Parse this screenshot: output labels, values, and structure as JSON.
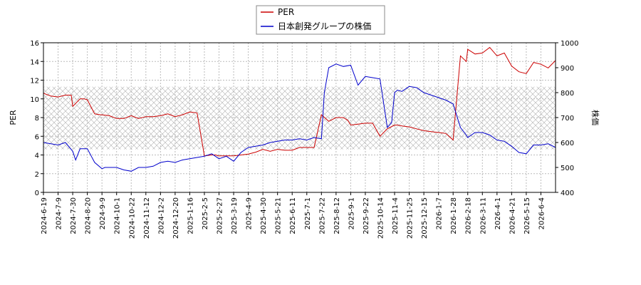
{
  "chart_data": {
    "type": "line",
    "legend_position": "top-center",
    "grid": true,
    "hatched_band": true,
    "xlabel": "",
    "ylabel_left": "PER",
    "ylabel_right": "株価",
    "ylim_left": [
      0,
      16
    ],
    "ylim_right": [
      400,
      1000
    ],
    "yticks_left": [
      0,
      2,
      4,
      6,
      8,
      10,
      12,
      14,
      16
    ],
    "yticks_right": [
      400,
      500,
      600,
      700,
      800,
      900,
      1000
    ],
    "x_tick_labels": [
      "2024-6-19",
      "2024-7-9",
      "2024-7-30",
      "2024-8-20",
      "2024-9-9",
      "2024-10-1",
      "2024-10-22",
      "2024-11-12",
      "2024-12-2",
      "2024-12-20",
      "2025-1-16",
      "2025-2-5",
      "2025-2-27",
      "2025-3-19",
      "2025-4-9",
      "2025-4-30",
      "2025-5-21",
      "2025-6-11",
      "2025-7-1",
      "2025-7-22",
      "2025-8-12",
      "2025-9-1",
      "2025-9-22",
      "2025-10-14",
      "2025-11-4",
      "2025-11-25",
      "2025-12-15",
      "2026-1-7",
      "2026-1-28",
      "2026-2-18",
      "2026-3-11",
      "2026-4-1",
      "2026-4-21",
      "2026-5-15",
      "2026-6-4"
    ],
    "x_range": [
      0,
      35
    ],
    "series": [
      {
        "name": "PER",
        "axis": "left",
        "color": "#cc0000",
        "x": [
          0,
          0.5,
          1,
          1.5,
          1.9,
          2,
          2.5,
          2.8,
          3,
          3.5,
          3.9,
          4,
          4.5,
          5,
          5.5,
          6,
          6.5,
          7,
          7.5,
          8,
          8.5,
          9,
          9.5,
          10,
          10.5,
          11,
          11.5,
          11.8,
          11.9,
          12,
          12.5,
          13,
          13.5,
          14,
          14.5,
          15,
          15.5,
          16,
          16.5,
          17,
          17.5,
          18,
          18.5,
          19,
          19.5,
          20,
          20.5,
          20.8,
          21,
          21.5,
          22,
          22.5,
          23,
          23.5,
          24,
          24.2,
          24.5,
          25,
          25.5,
          26,
          26.5,
          27,
          27.5,
          28,
          28.5,
          28.9,
          29,
          29.5,
          30,
          30.5,
          31,
          31.5,
          32,
          32.5,
          33,
          33.5,
          34,
          34.5,
          35
        ],
        "values": [
          10.6,
          10.3,
          10.2,
          10.4,
          10.4,
          9.2,
          10.0,
          10.0,
          9.9,
          8.4,
          8.3,
          8.3,
          8.2,
          7.9,
          7.9,
          8.2,
          7.9,
          8.1,
          8.1,
          8.2,
          8.4,
          8.1,
          8.3,
          8.6,
          8.5,
          3.9,
          4.0,
          4.0,
          3.9,
          3.9,
          3.9,
          3.9,
          4.0,
          4.1,
          4.3,
          4.6,
          4.4,
          4.6,
          4.5,
          4.5,
          4.8,
          4.8,
          4.8,
          8.3,
          7.6,
          8.0,
          8.0,
          7.7,
          7.2,
          7.3,
          7.4,
          7.4,
          6.0,
          6.8,
          7.2,
          7.2,
          7.1,
          7.0,
          6.8,
          6.6,
          6.5,
          6.4,
          6.3,
          5.6,
          14.6,
          14.0,
          15.3,
          14.8,
          14.9,
          15.5,
          14.6,
          14.9,
          13.5,
          12.9,
          12.7,
          13.9,
          13.7,
          13.3,
          14.1
        ]
      },
      {
        "name": "日本創発グループの株価",
        "axis": "right",
        "color": "#0000cc",
        "x": [
          0,
          0.5,
          1,
          1.5,
          2,
          2.2,
          2.5,
          3,
          3.5,
          4,
          4.2,
          4.5,
          5,
          5.5,
          6,
          6.5,
          7,
          7.5,
          8,
          8.5,
          9,
          9.5,
          10,
          10.5,
          11,
          11.5,
          12,
          12.5,
          13,
          13.5,
          14,
          14.5,
          15,
          15.5,
          16,
          16.5,
          17,
          17.5,
          18,
          18.5,
          19,
          19.2,
          19.5,
          20,
          20.5,
          21,
          21.5,
          22,
          22.5,
          23,
          23.5,
          23.8,
          24,
          24.2,
          24.5,
          25,
          25.5,
          26,
          26.5,
          27,
          27.5,
          28,
          28.5,
          28.9,
          29,
          29.5,
          30,
          30.5,
          31,
          31.5,
          32,
          32.5,
          33,
          33.5,
          34,
          34.5,
          35
        ],
        "values": [
          600,
          595,
          590,
          600,
          565,
          530,
          575,
          575,
          520,
          495,
          500,
          500,
          500,
          490,
          485,
          500,
          500,
          505,
          520,
          525,
          520,
          530,
          535,
          540,
          545,
          555,
          535,
          545,
          525,
          560,
          580,
          585,
          590,
          600,
          605,
          610,
          610,
          615,
          610,
          620,
          615,
          800,
          900,
          915,
          905,
          910,
          830,
          865,
          860,
          855,
          660,
          680,
          800,
          810,
          805,
          825,
          820,
          800,
          790,
          780,
          770,
          755,
          660,
          630,
          620,
          640,
          640,
          630,
          610,
          605,
          585,
          560,
          555,
          590,
          590,
          595,
          580
        ]
      }
    ]
  }
}
